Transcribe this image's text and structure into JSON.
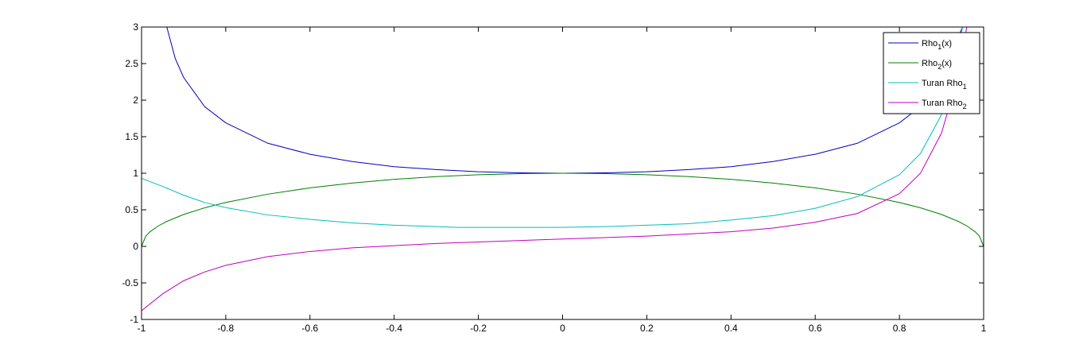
{
  "chart_data": {
    "type": "line",
    "title": "",
    "xlabel": "",
    "ylabel": "",
    "xlim": [
      -1,
      1
    ],
    "ylim": [
      -1,
      3
    ],
    "xticks": [
      "-1",
      "-0.8",
      "-0.6",
      "-0.4",
      "-0.2",
      "0",
      "0.2",
      "0.4",
      "0.6",
      "0.8",
      "1"
    ],
    "xtick_values": [
      -1,
      -0.8,
      -0.6,
      -0.4,
      -0.2,
      0,
      0.2,
      0.4,
      0.6,
      0.8,
      1
    ],
    "yticks": [
      "-1",
      "-0.5",
      "0",
      "0.5",
      "1",
      "1.5",
      "2",
      "2.5",
      "3"
    ],
    "ytick_values": [
      -1,
      -0.5,
      0,
      0.5,
      1,
      1.5,
      2,
      2.5,
      3
    ],
    "grid": false,
    "legend_position": "top-right",
    "series": [
      {
        "name": "Rho1(x)",
        "legend": {
          "base": "Rho",
          "sub": "1",
          "suffix": "(x)"
        },
        "color": "#0000bf",
        "x": [
          -0.94,
          -0.92,
          -0.9,
          -0.85,
          -0.8,
          -0.7,
          -0.6,
          -0.5,
          -0.4,
          -0.3,
          -0.2,
          -0.1,
          0,
          0.1,
          0.2,
          0.3,
          0.4,
          0.5,
          0.6,
          0.7,
          0.8,
          0.85,
          0.9,
          0.93,
          0.95
        ],
        "y": [
          3.0,
          2.57,
          2.31,
          1.91,
          1.69,
          1.41,
          1.26,
          1.16,
          1.09,
          1.05,
          1.02,
          1.005,
          1.0,
          1.005,
          1.02,
          1.05,
          1.09,
          1.16,
          1.26,
          1.41,
          1.69,
          1.91,
          2.31,
          2.73,
          3.0
        ]
      },
      {
        "name": "Rho2(x)",
        "legend": {
          "base": "Rho",
          "sub": "2",
          "suffix": "(x)"
        },
        "color": "#007f00",
        "x": [
          -1,
          -0.99,
          -0.98,
          -0.96,
          -0.94,
          -0.9,
          -0.85,
          -0.8,
          -0.7,
          -0.6,
          -0.5,
          -0.4,
          -0.3,
          -0.2,
          -0.1,
          0,
          0.1,
          0.2,
          0.3,
          0.4,
          0.5,
          0.6,
          0.7,
          0.8,
          0.85,
          0.9,
          0.94,
          0.96,
          0.98,
          0.99,
          1
        ],
        "y": [
          0.0,
          0.141,
          0.199,
          0.28,
          0.341,
          0.436,
          0.527,
          0.6,
          0.714,
          0.8,
          0.866,
          0.917,
          0.954,
          0.98,
          0.995,
          1.0,
          0.995,
          0.98,
          0.954,
          0.917,
          0.866,
          0.8,
          0.714,
          0.6,
          0.527,
          0.436,
          0.341,
          0.28,
          0.199,
          0.141,
          0.0
        ]
      },
      {
        "name": "Turan Rho1",
        "legend": {
          "base": "Turan Rho",
          "sub": "1",
          "suffix": ""
        },
        "color": "#00bfbf",
        "x": [
          -1,
          -0.95,
          -0.9,
          -0.85,
          -0.8,
          -0.7,
          -0.6,
          -0.5,
          -0.4,
          -0.3,
          -0.25,
          -0.2,
          -0.1,
          0,
          0.1,
          0.2,
          0.3,
          0.4,
          0.5,
          0.6,
          0.7,
          0.8,
          0.85,
          0.9,
          0.93,
          0.95
        ],
        "y": [
          0.93,
          0.82,
          0.7,
          0.6,
          0.53,
          0.43,
          0.37,
          0.32,
          0.29,
          0.27,
          0.26,
          0.26,
          0.26,
          0.26,
          0.27,
          0.29,
          0.31,
          0.36,
          0.42,
          0.52,
          0.68,
          0.98,
          1.27,
          1.8,
          2.45,
          3.0
        ]
      },
      {
        "name": "Turan Rho2",
        "legend": {
          "base": "Turan Rho",
          "sub": "2",
          "suffix": ""
        },
        "color": "#bf00bf",
        "x": [
          -1,
          -0.95,
          -0.9,
          -0.85,
          -0.8,
          -0.7,
          -0.6,
          -0.5,
          -0.4,
          -0.3,
          -0.2,
          -0.1,
          0,
          0.1,
          0.2,
          0.3,
          0.4,
          0.5,
          0.6,
          0.7,
          0.8,
          0.85,
          0.9,
          0.94,
          0.96
        ],
        "y": [
          -0.88,
          -0.65,
          -0.47,
          -0.35,
          -0.26,
          -0.14,
          -0.07,
          -0.02,
          0.01,
          0.04,
          0.06,
          0.08,
          0.1,
          0.12,
          0.14,
          0.17,
          0.2,
          0.25,
          0.33,
          0.45,
          0.72,
          1.0,
          1.55,
          2.35,
          3.0
        ]
      }
    ]
  }
}
